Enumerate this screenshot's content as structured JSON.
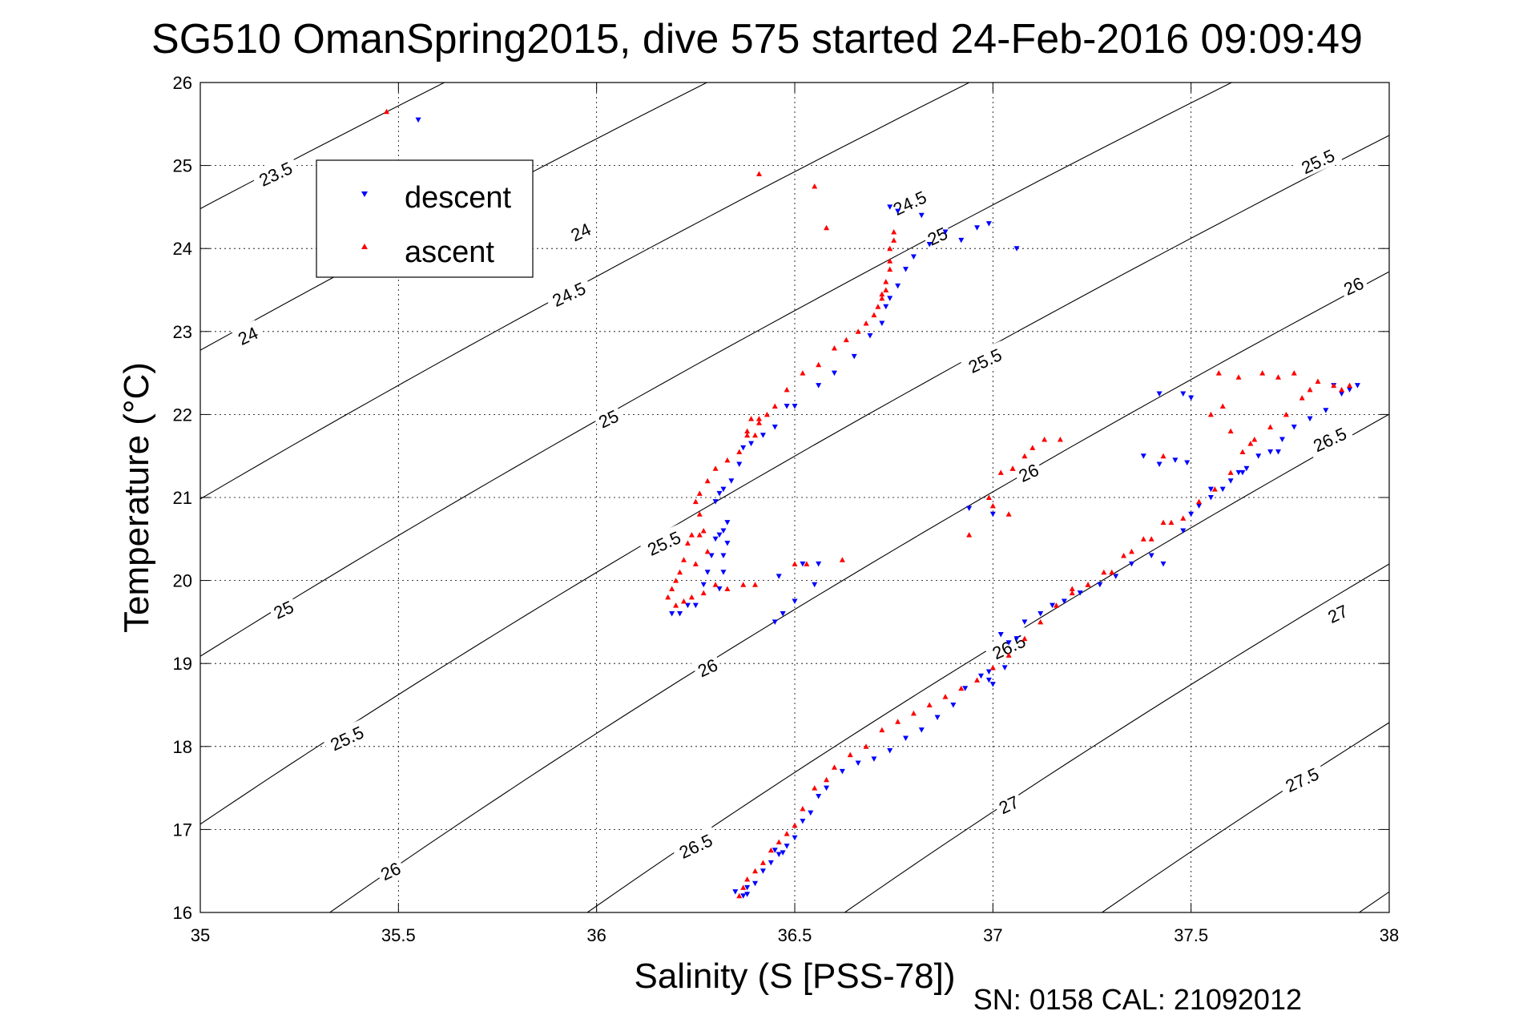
{
  "chart_data": {
    "type": "scatter",
    "title": "SG510 OmanSpring2015, dive 575 started 24-Feb-2016 09:09:49",
    "xlabel": "Salinity (S [PSS-78])",
    "ylabel": "Temperature (°C)",
    "footer": "SN: 0158  CAL: 21092012",
    "xlim": [
      35,
      38
    ],
    "ylim": [
      16,
      26
    ],
    "xticks": [
      35,
      35.5,
      36,
      36.5,
      37,
      37.5,
      38
    ],
    "xtick_labels": [
      "35",
      "35.5",
      "36",
      "36.5",
      "37",
      "37.5",
      "38"
    ],
    "yticks": [
      16,
      17,
      18,
      19,
      20,
      21,
      22,
      23,
      24,
      25,
      26
    ],
    "ytick_labels": [
      "16",
      "17",
      "18",
      "19",
      "20",
      "21",
      "22",
      "23",
      "24",
      "25",
      "26"
    ],
    "grid": true,
    "legend": {
      "placement": "top-left",
      "entries": [
        {
          "label": "descent",
          "color": "#0000ff",
          "marker": "triangle-down"
        },
        {
          "label": "ascent",
          "color": "#ff0000",
          "marker": "triangle-up"
        }
      ]
    },
    "contour_labels": [
      {
        "text": "23.5",
        "x": 35.19,
        "y": 24.9
      },
      {
        "text": "24",
        "x": 35.96,
        "y": 24.2
      },
      {
        "text": "24",
        "x": 35.12,
        "y": 22.95
      },
      {
        "text": "24.5",
        "x": 36.79,
        "y": 24.55
      },
      {
        "text": "24.5",
        "x": 35.93,
        "y": 23.45
      },
      {
        "text": "25",
        "x": 36.86,
        "y": 24.15
      },
      {
        "text": "25",
        "x": 36.03,
        "y": 21.95
      },
      {
        "text": "25",
        "x": 35.21,
        "y": 19.65
      },
      {
        "text": "25.5",
        "x": 37.82,
        "y": 25.05
      },
      {
        "text": "25.5",
        "x": 36.98,
        "y": 22.65
      },
      {
        "text": "25.5",
        "x": 36.17,
        "y": 20.45
      },
      {
        "text": "25.5",
        "x": 35.37,
        "y": 18.1
      },
      {
        "text": "26",
        "x": 37.91,
        "y": 23.55
      },
      {
        "text": "26",
        "x": 37.09,
        "y": 21.3
      },
      {
        "text": "26",
        "x": 36.28,
        "y": 18.95
      },
      {
        "text": "26",
        "x": 35.48,
        "y": 16.5
      },
      {
        "text": "26.5",
        "x": 37.85,
        "y": 21.7
      },
      {
        "text": "26.5",
        "x": 37.04,
        "y": 19.2
      },
      {
        "text": "26.5",
        "x": 36.25,
        "y": 16.8
      },
      {
        "text": "27",
        "x": 37.87,
        "y": 19.6
      },
      {
        "text": "27",
        "x": 37.04,
        "y": 17.3
      },
      {
        "text": "27.5",
        "x": 37.78,
        "y": 17.6
      }
    ],
    "series": [
      {
        "name": "descent",
        "color": "#0000ff",
        "marker": "triangle-down",
        "points": [
          [
            35.55,
            25.55
          ],
          [
            36.19,
            19.6
          ],
          [
            36.21,
            19.6
          ],
          [
            36.23,
            19.7
          ],
          [
            36.25,
            19.7
          ],
          [
            36.27,
            19.95
          ],
          [
            36.28,
            20.1
          ],
          [
            36.29,
            20.3
          ],
          [
            36.3,
            20.5
          ],
          [
            36.31,
            20.55
          ],
          [
            36.32,
            20.6
          ],
          [
            36.33,
            20.7
          ],
          [
            36.33,
            20.45
          ],
          [
            36.32,
            20.3
          ],
          [
            36.32,
            20.1
          ],
          [
            36.31,
            19.9
          ],
          [
            36.3,
            20.95
          ],
          [
            36.31,
            21.05
          ],
          [
            36.32,
            21.1
          ],
          [
            36.34,
            21.2
          ],
          [
            36.36,
            21.4
          ],
          [
            36.37,
            21.6
          ],
          [
            36.39,
            21.65
          ],
          [
            36.42,
            21.75
          ],
          [
            36.45,
            21.85
          ],
          [
            36.48,
            22.1
          ],
          [
            36.5,
            22.1
          ],
          [
            36.56,
            22.35
          ],
          [
            36.6,
            22.5
          ],
          [
            36.65,
            22.7
          ],
          [
            36.69,
            22.95
          ],
          [
            36.72,
            23.1
          ],
          [
            36.73,
            23.3
          ],
          [
            36.74,
            23.4
          ],
          [
            36.76,
            23.55
          ],
          [
            36.78,
            23.75
          ],
          [
            36.8,
            23.9
          ],
          [
            36.84,
            24.05
          ],
          [
            36.88,
            24.2
          ],
          [
            36.92,
            24.1
          ],
          [
            36.96,
            24.25
          ],
          [
            36.99,
            24.3
          ],
          [
            36.74,
            24.5
          ],
          [
            36.76,
            24.45
          ],
          [
            36.82,
            24.4
          ],
          [
            37.06,
            24.0
          ],
          [
            36.45,
            19.5
          ],
          [
            36.47,
            19.6
          ],
          [
            36.5,
            19.75
          ],
          [
            36.55,
            19.95
          ],
          [
            36.56,
            20.2
          ],
          [
            36.52,
            20.2
          ],
          [
            36.46,
            20.05
          ],
          [
            36.94,
            20.87
          ],
          [
            37.0,
            20.8
          ],
          [
            37.02,
            19.35
          ],
          [
            37.04,
            19.25
          ],
          [
            37.06,
            19.3
          ],
          [
            36.99,
            18.8
          ],
          [
            37.03,
            18.95
          ],
          [
            37.08,
            19.5
          ],
          [
            37.12,
            19.6
          ],
          [
            37.15,
            19.7
          ],
          [
            37.18,
            19.75
          ],
          [
            37.22,
            19.85
          ],
          [
            37.27,
            19.95
          ],
          [
            37.31,
            20.05
          ],
          [
            37.35,
            20.2
          ],
          [
            37.4,
            20.3
          ],
          [
            37.43,
            20.2
          ],
          [
            37.48,
            20.6
          ],
          [
            37.5,
            20.8
          ],
          [
            37.52,
            20.9
          ],
          [
            37.55,
            21.0
          ],
          [
            37.58,
            21.1
          ],
          [
            37.6,
            21.2
          ],
          [
            37.62,
            21.3
          ],
          [
            37.64,
            21.35
          ],
          [
            37.67,
            21.5
          ],
          [
            37.7,
            21.55
          ],
          [
            37.73,
            21.7
          ],
          [
            37.76,
            21.85
          ],
          [
            37.8,
            21.95
          ],
          [
            37.84,
            22.05
          ],
          [
            37.88,
            22.25
          ],
          [
            37.9,
            22.3
          ],
          [
            37.92,
            22.35
          ],
          [
            37.86,
            22.35
          ],
          [
            37.42,
            22.25
          ],
          [
            37.48,
            22.25
          ],
          [
            37.55,
            21.1
          ],
          [
            37.63,
            21.3
          ],
          [
            37.72,
            21.55
          ],
          [
            37.38,
            21.5
          ],
          [
            37.42,
            21.4
          ],
          [
            37.46,
            21.45
          ],
          [
            37.49,
            21.42
          ],
          [
            37.5,
            22.2
          ],
          [
            36.37,
            16.2
          ],
          [
            36.38,
            16.3
          ],
          [
            36.4,
            16.35
          ],
          [
            36.42,
            16.5
          ],
          [
            36.44,
            16.6
          ],
          [
            36.46,
            16.7
          ],
          [
            36.48,
            16.8
          ],
          [
            36.5,
            16.9
          ],
          [
            36.52,
            17.1
          ],
          [
            36.54,
            17.2
          ],
          [
            36.56,
            17.4
          ],
          [
            36.58,
            17.5
          ],
          [
            36.62,
            17.7
          ],
          [
            36.66,
            17.8
          ],
          [
            36.7,
            17.85
          ],
          [
            36.74,
            17.95
          ],
          [
            36.78,
            18.1
          ],
          [
            36.82,
            18.2
          ],
          [
            36.86,
            18.35
          ],
          [
            36.9,
            18.5
          ],
          [
            36.93,
            18.7
          ],
          [
            36.97,
            18.85
          ],
          [
            36.99,
            18.9
          ],
          [
            37.0,
            18.75
          ],
          [
            36.35,
            16.25
          ],
          [
            36.38,
            16.22
          ],
          [
            36.45,
            16.75
          ],
          [
            36.47,
            16.72
          ]
        ]
      },
      {
        "name": "ascent",
        "color": "#ff0000",
        "marker": "triangle-up",
        "points": [
          [
            35.47,
            25.65
          ],
          [
            36.41,
            24.9
          ],
          [
            36.55,
            24.75
          ],
          [
            36.58,
            24.25
          ],
          [
            36.18,
            19.8
          ],
          [
            36.19,
            19.9
          ],
          [
            36.2,
            20.0
          ],
          [
            36.21,
            20.1
          ],
          [
            36.22,
            20.25
          ],
          [
            36.23,
            20.45
          ],
          [
            36.24,
            20.55
          ],
          [
            36.26,
            20.55
          ],
          [
            36.27,
            20.6
          ],
          [
            36.26,
            20.8
          ],
          [
            36.25,
            20.95
          ],
          [
            36.26,
            21.05
          ],
          [
            36.28,
            21.2
          ],
          [
            36.3,
            21.35
          ],
          [
            36.33,
            21.45
          ],
          [
            36.36,
            21.55
          ],
          [
            36.38,
            21.8
          ],
          [
            36.39,
            21.95
          ],
          [
            36.41,
            21.9
          ],
          [
            36.43,
            22.0
          ],
          [
            36.45,
            22.1
          ],
          [
            36.48,
            22.3
          ],
          [
            36.52,
            22.5
          ],
          [
            36.56,
            22.6
          ],
          [
            36.6,
            22.8
          ],
          [
            36.63,
            22.9
          ],
          [
            36.66,
            23.0
          ],
          [
            36.68,
            23.1
          ],
          [
            36.7,
            23.2
          ],
          [
            36.71,
            23.3
          ],
          [
            36.72,
            23.45
          ],
          [
            36.73,
            23.6
          ],
          [
            36.74,
            23.75
          ],
          [
            36.74,
            23.85
          ],
          [
            36.74,
            24.0
          ],
          [
            36.75,
            24.1
          ],
          [
            36.75,
            24.2
          ],
          [
            36.73,
            23.5
          ],
          [
            36.72,
            23.4
          ],
          [
            36.38,
            21.75
          ],
          [
            36.4,
            21.75
          ],
          [
            36.41,
            21.95
          ],
          [
            36.2,
            19.7
          ],
          [
            36.22,
            19.75
          ],
          [
            36.24,
            19.8
          ],
          [
            36.27,
            19.85
          ],
          [
            36.3,
            19.95
          ],
          [
            36.33,
            19.9
          ],
          [
            36.37,
            19.95
          ],
          [
            36.4,
            19.95
          ],
          [
            36.25,
            20.2
          ],
          [
            36.28,
            20.35
          ],
          [
            36.5,
            20.2
          ],
          [
            36.53,
            20.2
          ],
          [
            36.62,
            20.25
          ],
          [
            36.94,
            20.55
          ],
          [
            36.99,
            21.0
          ],
          [
            37.0,
            20.9
          ],
          [
            37.04,
            20.8
          ],
          [
            37.05,
            21.35
          ],
          [
            37.08,
            21.5
          ],
          [
            37.1,
            21.6
          ],
          [
            37.13,
            21.7
          ],
          [
            37.17,
            21.7
          ],
          [
            37.02,
            21.3
          ],
          [
            37.05,
            21.35
          ],
          [
            37.2,
            19.9
          ],
          [
            37.24,
            19.95
          ],
          [
            37.28,
            20.1
          ],
          [
            37.33,
            20.3
          ],
          [
            37.38,
            20.5
          ],
          [
            37.43,
            20.7
          ],
          [
            37.48,
            20.75
          ],
          [
            37.52,
            20.95
          ],
          [
            37.56,
            21.1
          ],
          [
            37.6,
            21.3
          ],
          [
            37.63,
            21.55
          ],
          [
            37.66,
            21.7
          ],
          [
            37.7,
            21.85
          ],
          [
            37.74,
            22.0
          ],
          [
            37.78,
            22.2
          ],
          [
            37.82,
            22.4
          ],
          [
            37.86,
            22.35
          ],
          [
            37.88,
            22.3
          ],
          [
            37.9,
            22.35
          ],
          [
            37.57,
            22.5
          ],
          [
            37.62,
            22.45
          ],
          [
            37.68,
            22.5
          ],
          [
            37.72,
            22.45
          ],
          [
            37.76,
            22.5
          ],
          [
            37.8,
            22.3
          ],
          [
            37.55,
            22.0
          ],
          [
            37.6,
            21.8
          ],
          [
            37.65,
            21.65
          ],
          [
            37.43,
            21.5
          ],
          [
            37.58,
            22.1
          ],
          [
            36.36,
            16.2
          ],
          [
            36.37,
            16.3
          ],
          [
            36.38,
            16.4
          ],
          [
            36.4,
            16.5
          ],
          [
            36.42,
            16.6
          ],
          [
            36.44,
            16.75
          ],
          [
            36.46,
            16.85
          ],
          [
            36.48,
            16.95
          ],
          [
            36.5,
            17.05
          ],
          [
            36.52,
            17.25
          ],
          [
            36.55,
            17.5
          ],
          [
            36.58,
            17.6
          ],
          [
            36.6,
            17.75
          ],
          [
            36.64,
            17.9
          ],
          [
            36.68,
            18.0
          ],
          [
            36.72,
            18.2
          ],
          [
            36.76,
            18.3
          ],
          [
            36.8,
            18.4
          ],
          [
            36.84,
            18.5
          ],
          [
            36.88,
            18.6
          ],
          [
            36.92,
            18.7
          ],
          [
            36.96,
            18.8
          ],
          [
            37.0,
            18.95
          ],
          [
            37.04,
            19.1
          ],
          [
            37.08,
            19.3
          ],
          [
            37.12,
            19.5
          ],
          [
            37.16,
            19.7
          ],
          [
            37.2,
            19.85
          ],
          [
            37.24,
            19.95
          ],
          [
            37.3,
            20.1
          ],
          [
            37.35,
            20.35
          ],
          [
            37.4,
            20.5
          ],
          [
            37.45,
            20.7
          ]
        ]
      }
    ]
  }
}
